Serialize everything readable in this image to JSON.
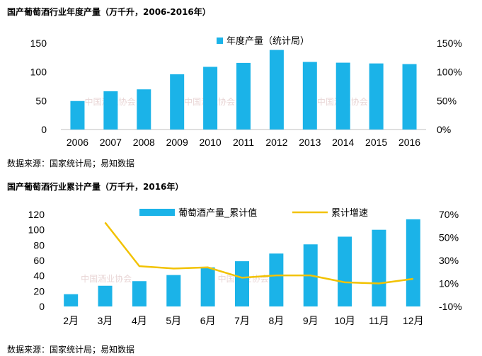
{
  "chart_data": [
    {
      "type": "bar",
      "title": "国产葡萄酒行业年度产量（万千升，2006-2016年）",
      "source": "数据来源：国家统计局；易知数据",
      "watermark": "中国酒业协会",
      "categories": [
        "2006",
        "2007",
        "2008",
        "2009",
        "2010",
        "2011",
        "2012",
        "2013",
        "2014",
        "2015",
        "2016"
      ],
      "series": [
        {
          "name": "年度产量（统计局）",
          "values": [
            49.5,
            66.5,
            69.8,
            96.0,
            108.9,
            115.7,
            138.2,
            117.4,
            116.1,
            114.8,
            113.7
          ]
        }
      ],
      "ylim": [
        0,
        150
      ],
      "y_ticks": [
        "0",
        "50",
        "100",
        "150"
      ],
      "y2_ticks": [
        "0%",
        "50%",
        "100%",
        "150%"
      ],
      "legend_position": "top",
      "grid": false,
      "colors": {
        "bar": "#1bb3e8"
      }
    },
    {
      "type": "bar+line",
      "title": "国产葡萄酒行业累计产量（万千升，2016年）",
      "source": "数据来源：国家统计局；易知数据",
      "watermark": "中国酒业协会",
      "categories": [
        "2月",
        "3月",
        "4月",
        "5月",
        "6月",
        "7月",
        "8月",
        "9月",
        "10月",
        "11月",
        "12月"
      ],
      "series": [
        {
          "name": "葡萄酒产量_累计值",
          "type": "bar",
          "axis": "left",
          "values": [
            16,
            27,
            33,
            41,
            51,
            59,
            69,
            81,
            91,
            100,
            113.7
          ]
        },
        {
          "name": "累计增速",
          "type": "line",
          "axis": "right",
          "values": [
            null,
            63,
            25,
            23,
            24,
            15,
            17,
            17,
            11,
            10,
            14
          ]
        }
      ],
      "ylim": [
        0,
        120
      ],
      "y2lim": [
        -10,
        70
      ],
      "y_ticks": [
        "0",
        "20",
        "40",
        "60",
        "80",
        "100",
        "120"
      ],
      "y2_ticks": [
        "-10%",
        "10%",
        "30%",
        "50%",
        "70%"
      ],
      "legend_position": "top",
      "grid": false,
      "colors": {
        "bar": "#1bb3e8",
        "line": "#f2c200"
      }
    }
  ]
}
